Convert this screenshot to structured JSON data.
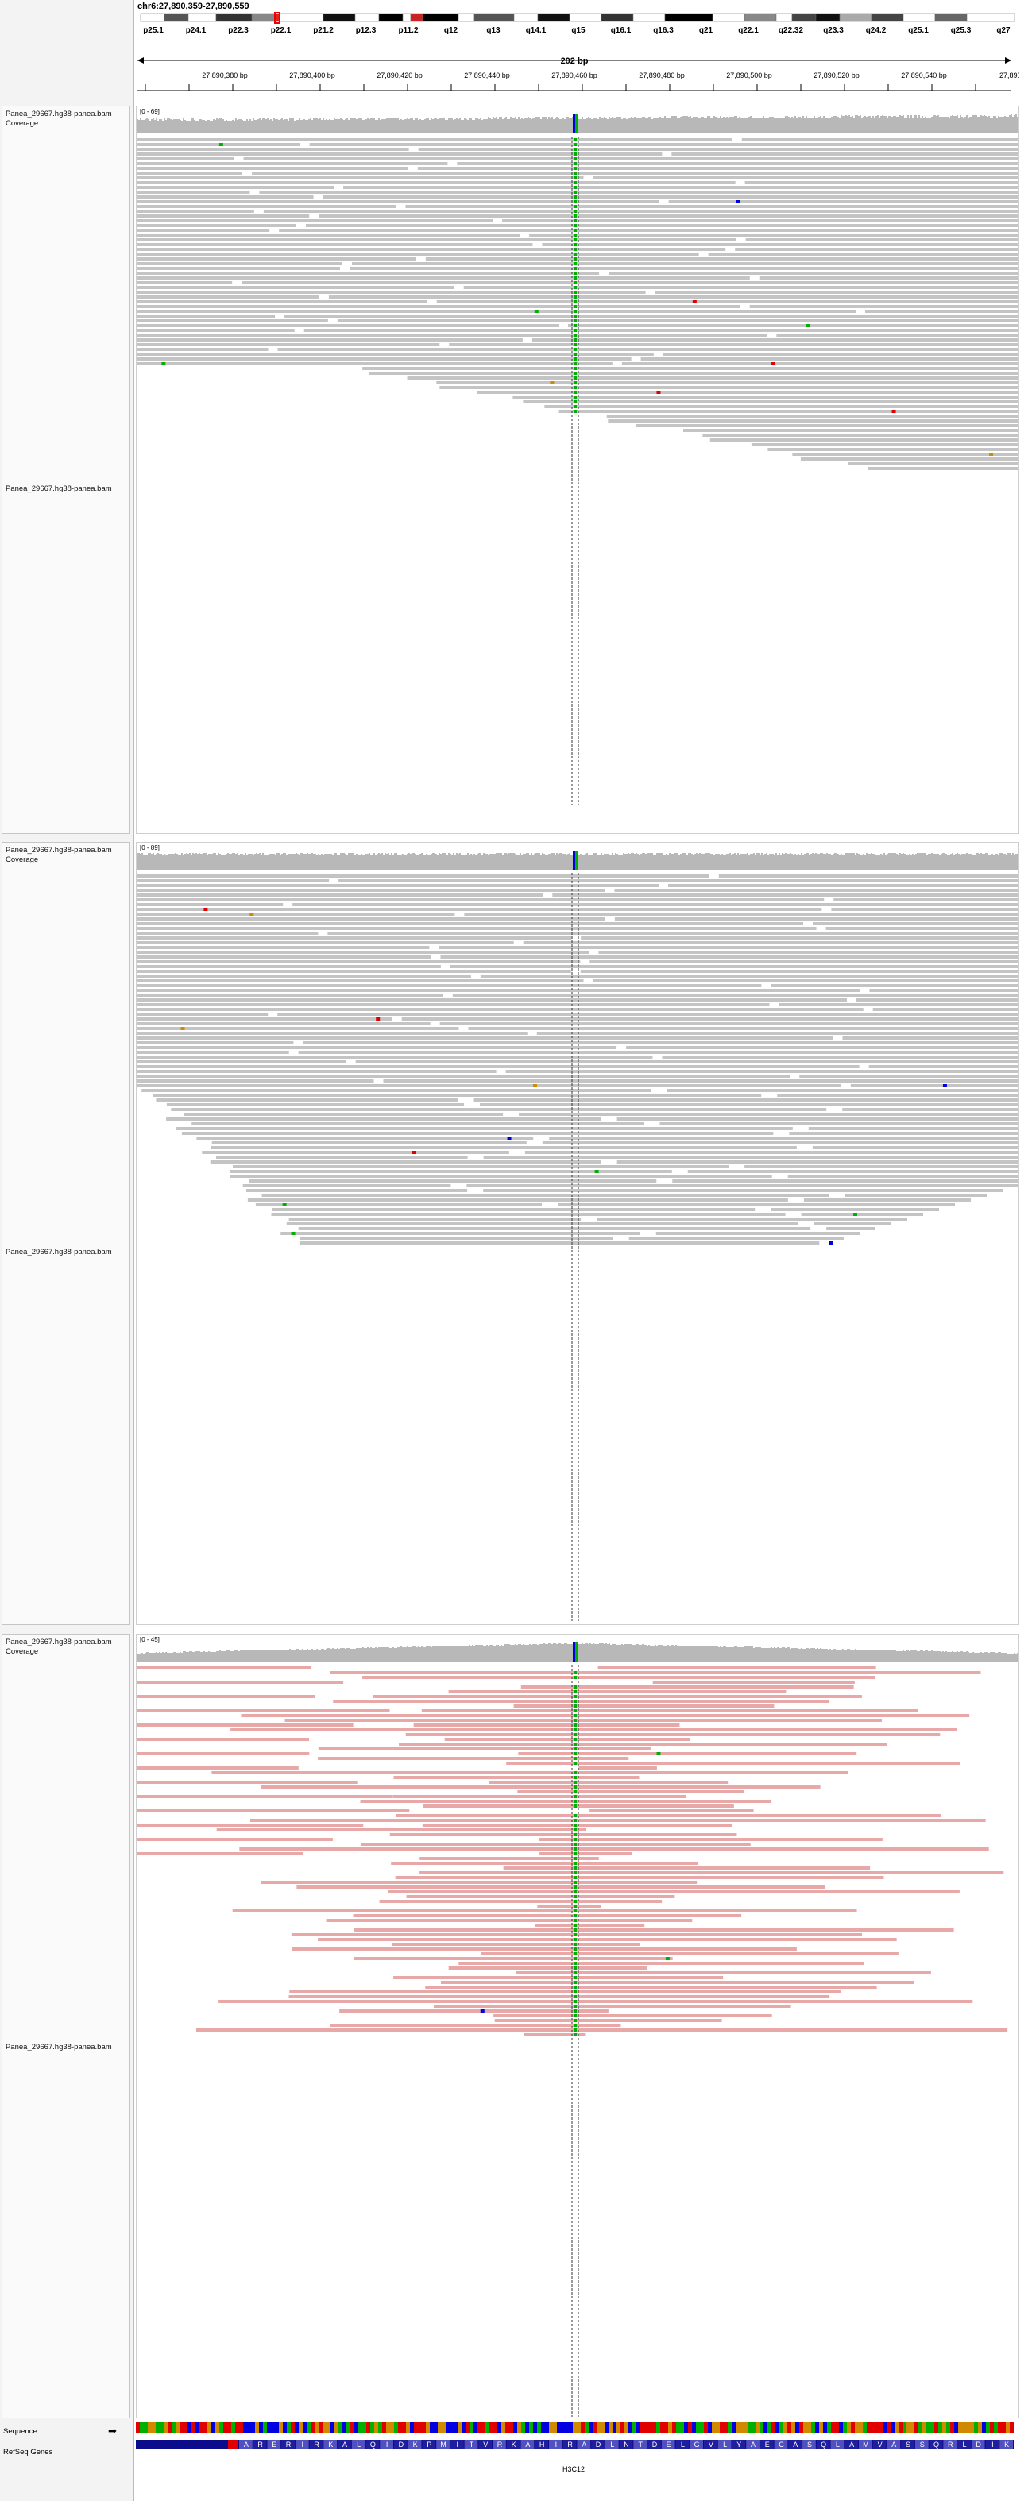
{
  "locus": "chr6:27,890,359-27,890,559",
  "ideogram": {
    "bands": [
      "p25.1",
      "p24.1",
      "p22.3",
      "p22.1",
      "p21.2",
      "p12.3",
      "p11.2",
      "q12",
      "q13",
      "q14.1",
      "q15",
      "q16.1",
      "q16.3",
      "q21",
      "q22.1",
      "q22.32",
      "q23.3",
      "q24.2",
      "q25.1",
      "q25.3",
      "q27"
    ]
  },
  "ruler": {
    "span": "202 bp",
    "ticks": [
      "27,890,380 bp",
      "27,890,400 bp",
      "27,890,420 bp",
      "27,890,440 bp",
      "27,890,460 bp",
      "27,890,480 bp",
      "27,890,500 bp",
      "27,890,520 bp",
      "27,890,540 bp",
      "27,890,"
    ]
  },
  "tracks": [
    {
      "coverage_label": "Panea_29667.hg38-panea.bam Coverage",
      "alignment_label": "Panea_29667.hg38-panea.bam",
      "range": "[0 - 69]",
      "read_color": "#c4c4c4"
    },
    {
      "coverage_label": "Panea_29667.hg38-panea.bam Coverage",
      "alignment_label": "Panea_29667.hg38-panea.bam",
      "range": "[0 - 89]",
      "read_color": "#c4c4c4"
    },
    {
      "coverage_label": "Panea_29667.hg38-panea.bam Coverage",
      "alignment_label": "Panea_29667.hg38-panea.bam",
      "range": "[0 - 45]",
      "read_color": "#e9a8a8"
    }
  ],
  "sequence_label": "Sequence",
  "refseq_label": "RefSeq Genes",
  "gene": {
    "name": "H3C12",
    "amino_acids": "ARERIRKALQIDKPMITVRKAHIRADLNTDELGVLYAECASQLAMVASSQRLDIK"
  },
  "colors": {
    "A": "#00b000",
    "C": "#0000e0",
    "G": "#d18a00",
    "T": "#e00000",
    "gene": "#0b0b8c",
    "coverage": "#b8b8b8"
  }
}
